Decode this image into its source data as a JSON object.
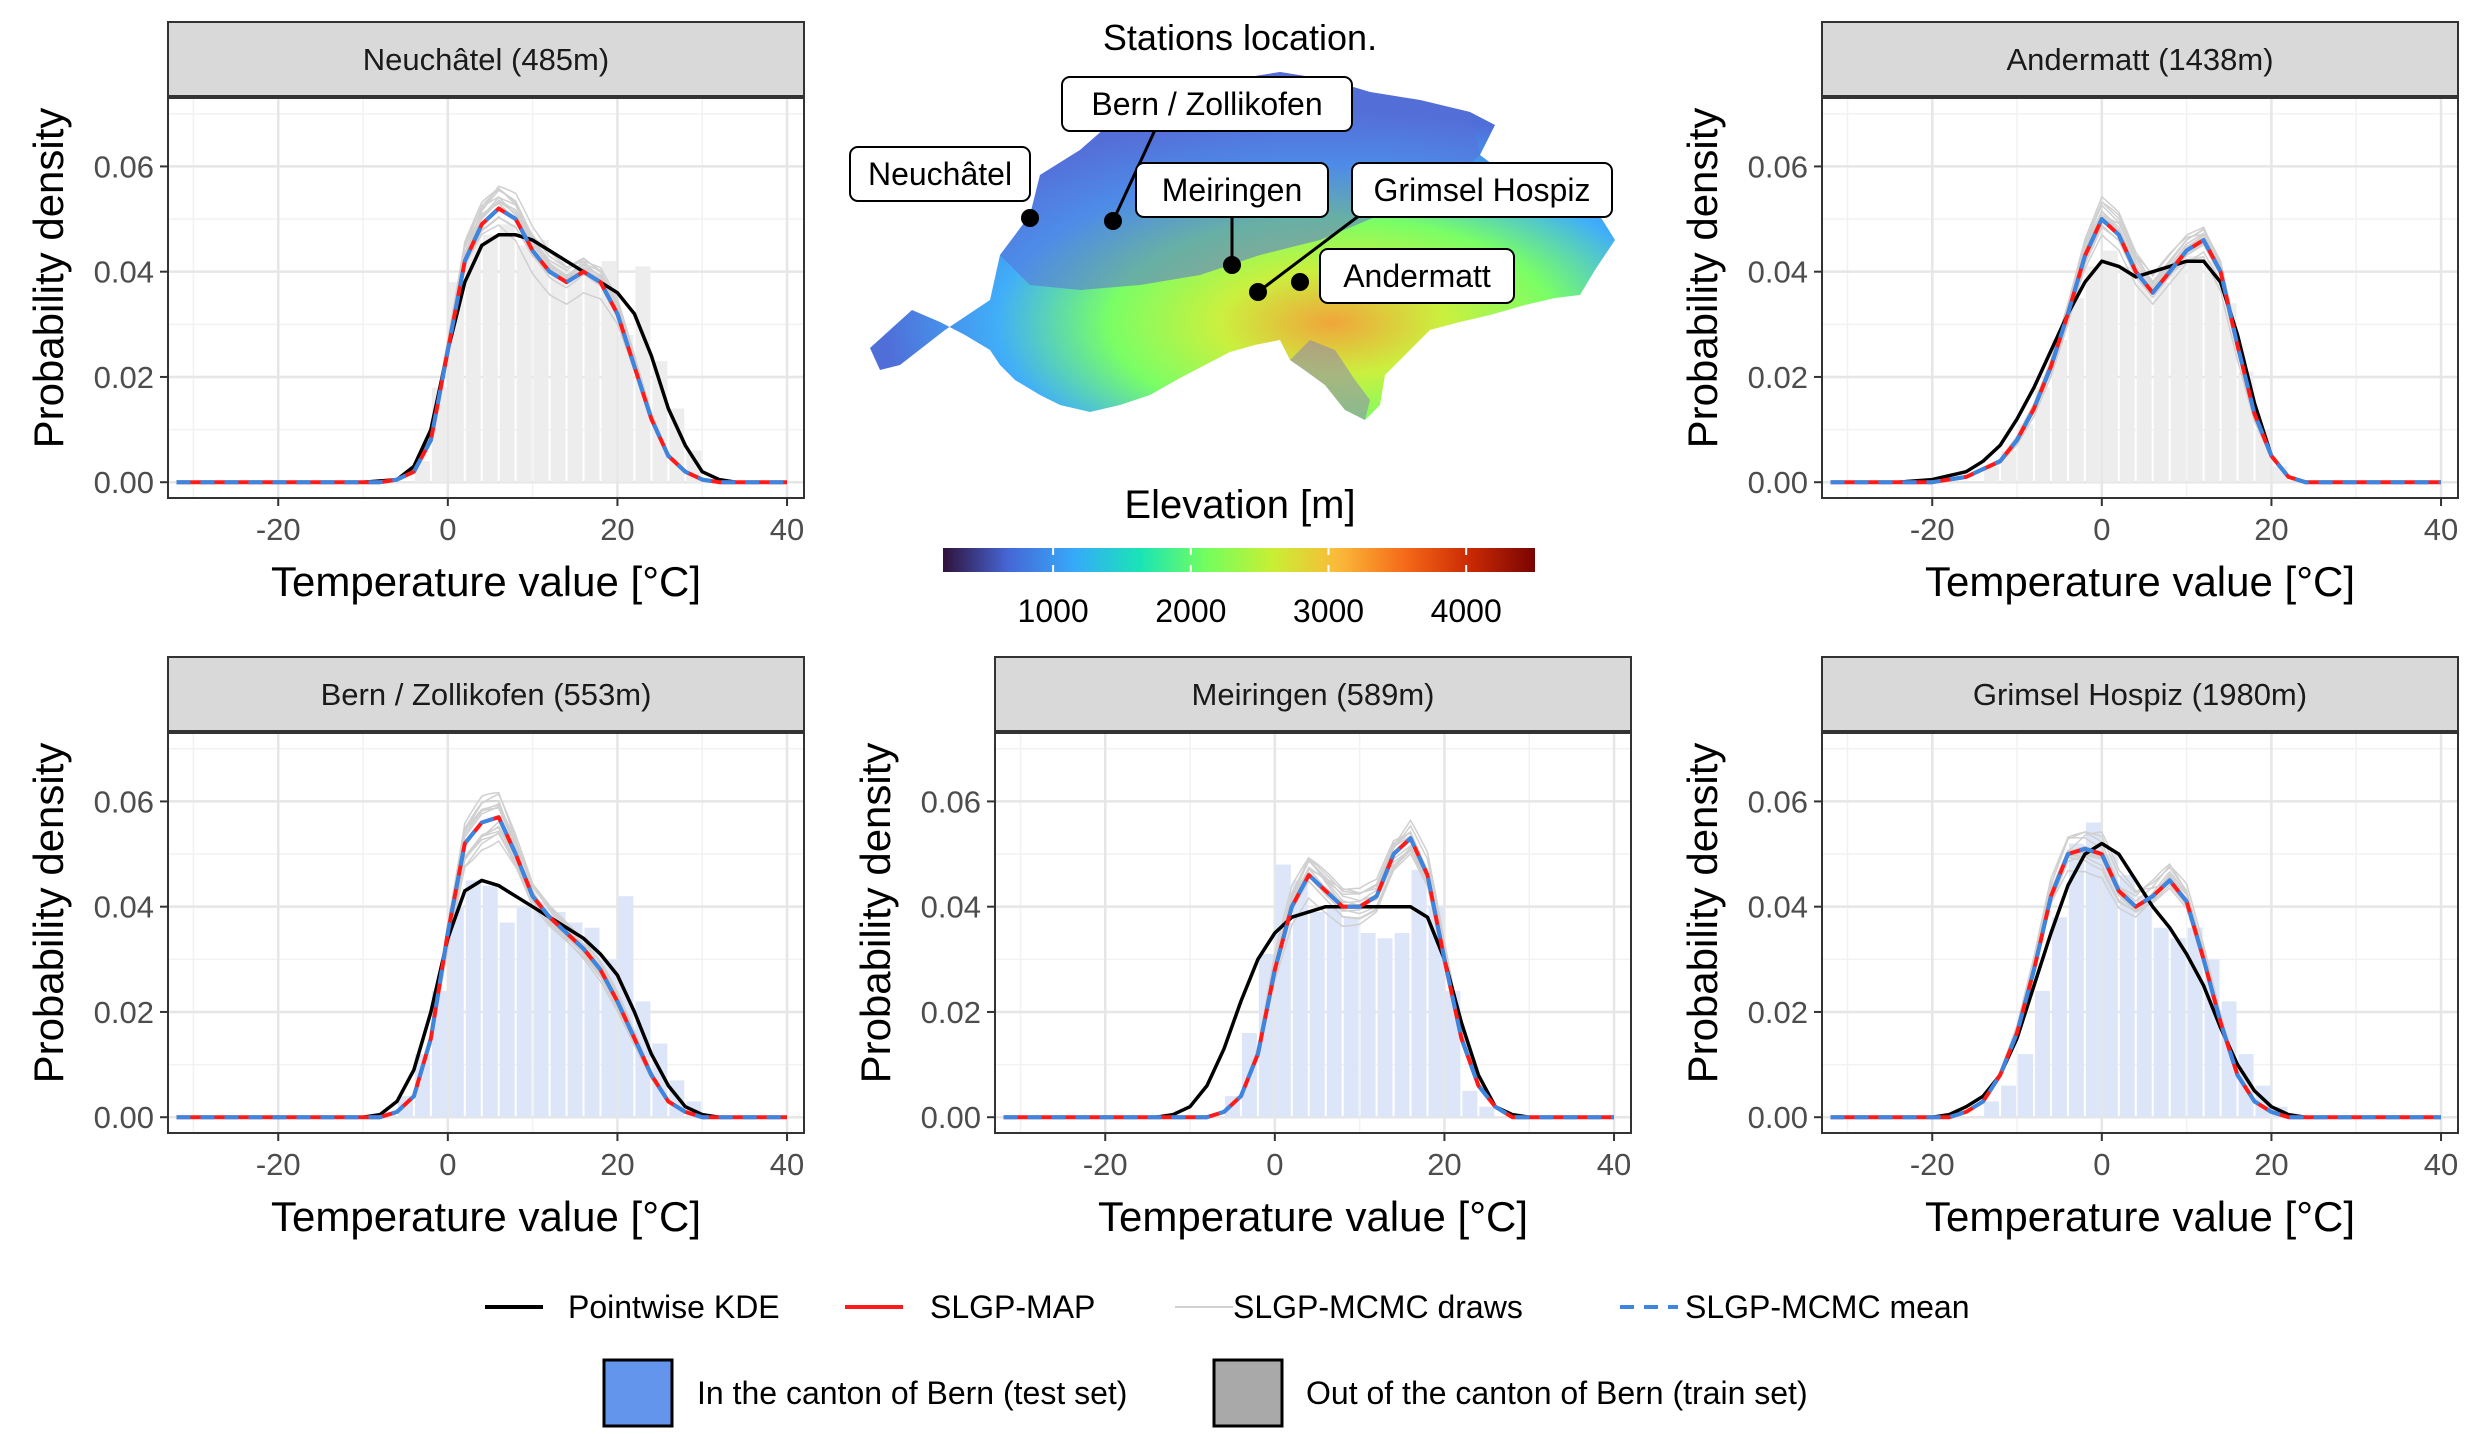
{
  "figure": {
    "map_title": "Stations location.",
    "colorbar": {
      "title": "Elevation [m]",
      "ticks": [
        "1000",
        "2000",
        "3000",
        "4000"
      ],
      "tick_values": [
        1000,
        2000,
        3000,
        4000
      ],
      "range": [
        200,
        4500
      ],
      "palette": [
        "#30123b",
        "#4667d6",
        "#36aaf9",
        "#1ae4b6",
        "#72fe5e",
        "#c8ef34",
        "#faba39",
        "#f66b19",
        "#ca2a04",
        "#7a0403"
      ]
    },
    "map_labels": [
      "Neuchâtel",
      "Bern / Zollikofen",
      "Meiringen",
      "Grimsel Hospiz",
      "Andermatt"
    ],
    "legend": {
      "lines": [
        "Pointwise KDE",
        "SLGP-MAP",
        "SLGP-MCMC draws",
        "SLGP-MCMC mean"
      ],
      "fills": [
        "In the canton of Bern (test set)",
        "Out of the canton of Bern (train set)"
      ],
      "colors": {
        "kde": "#000000",
        "map": "#ff1a1a",
        "draws": "#d0d0d0",
        "mean": "#3a86e0",
        "test_fill": "#6495ed",
        "train_fill": "#a9a9a9"
      }
    }
  },
  "chart_data": [
    {
      "type": "line",
      "strip": "Neuchâtel (485m)",
      "xlabel": "Temperature value [°C]",
      "ylabel": "Probability density",
      "xlim": [
        -33,
        42
      ],
      "ylim": [
        -0.003,
        0.073
      ],
      "xticks": [
        "-20",
        "0",
        "20",
        "40"
      ],
      "xtick_values": [
        -20,
        0,
        20,
        40
      ],
      "yticks": [
        "0.00",
        "0.02",
        "0.04",
        "0.06"
      ],
      "ytick_values": [
        0,
        0.02,
        0.04,
        0.06
      ],
      "histogram": {
        "set": "train",
        "bin_start": -4,
        "bin_width": 2,
        "values": [
          0.004,
          0.018,
          0.038,
          0.047,
          0.047,
          0.049,
          0.045,
          0.046,
          0.042,
          0.04,
          0.04,
          0.042,
          0.028,
          0.041,
          0.023,
          0.014,
          0.006
        ]
      },
      "series": [
        {
          "name": "Pointwise KDE",
          "x": [
            -32,
            -10,
            -6,
            -4,
            -2,
            0,
            2,
            4,
            6,
            8,
            10,
            12,
            14,
            16,
            18,
            20,
            22,
            24,
            26,
            28,
            30,
            32,
            34,
            40
          ],
          "y": [
            0,
            0,
            0.0005,
            0.003,
            0.01,
            0.025,
            0.038,
            0.045,
            0.047,
            0.047,
            0.046,
            0.044,
            0.042,
            0.04,
            0.038,
            0.036,
            0.032,
            0.024,
            0.014,
            0.007,
            0.002,
            0.0005,
            0,
            0
          ]
        },
        {
          "name": "SLGP-MAP",
          "x": [
            -32,
            -8,
            -6,
            -4,
            -2,
            0,
            2,
            4,
            6,
            8,
            10,
            12,
            14,
            16,
            18,
            20,
            22,
            24,
            26,
            28,
            30,
            32,
            40
          ],
          "y": [
            0,
            0,
            0.0005,
            0.002,
            0.008,
            0.025,
            0.042,
            0.049,
            0.052,
            0.05,
            0.044,
            0.04,
            0.038,
            0.04,
            0.038,
            0.032,
            0.022,
            0.012,
            0.005,
            0.002,
            0.0005,
            0,
            0
          ]
        }
      ]
    },
    {
      "type": "line",
      "strip": "Andermatt (1438m)",
      "xlabel": "Temperature value [°C]",
      "ylabel": "Probability density",
      "xlim": [
        -33,
        42
      ],
      "ylim": [
        -0.003,
        0.073
      ],
      "xticks": [
        "-20",
        "0",
        "20",
        "40"
      ],
      "xtick_values": [
        -20,
        0,
        20,
        40
      ],
      "yticks": [
        "0.00",
        "0.02",
        "0.04",
        "0.06"
      ],
      "ytick_values": [
        0,
        0.02,
        0.04,
        0.06
      ],
      "histogram": {
        "set": "train",
        "bin_start": -14,
        "bin_width": 2,
        "values": [
          0.003,
          0.006,
          0.011,
          0.018,
          0.027,
          0.035,
          0.041,
          0.044,
          0.041,
          0.039,
          0.038,
          0.042,
          0.043,
          0.042,
          0.034,
          0.021,
          0.01,
          0.003
        ]
      },
      "series": [
        {
          "name": "Pointwise KDE",
          "x": [
            -32,
            -24,
            -20,
            -16,
            -14,
            -12,
            -10,
            -8,
            -6,
            -4,
            -2,
            0,
            2,
            4,
            6,
            8,
            10,
            12,
            14,
            16,
            18,
            20,
            22,
            24,
            40
          ],
          "y": [
            0,
            0,
            0.0005,
            0.002,
            0.004,
            0.007,
            0.012,
            0.018,
            0.025,
            0.032,
            0.038,
            0.042,
            0.041,
            0.039,
            0.04,
            0.041,
            0.042,
            0.042,
            0.038,
            0.028,
            0.015,
            0.005,
            0.001,
            0,
            0
          ]
        },
        {
          "name": "SLGP-MAP",
          "x": [
            -32,
            -20,
            -16,
            -12,
            -10,
            -8,
            -6,
            -4,
            -2,
            0,
            2,
            4,
            6,
            8,
            10,
            12,
            14,
            16,
            18,
            20,
            22,
            24,
            40
          ],
          "y": [
            0,
            0,
            0.001,
            0.004,
            0.008,
            0.014,
            0.022,
            0.032,
            0.043,
            0.05,
            0.047,
            0.04,
            0.036,
            0.04,
            0.044,
            0.046,
            0.04,
            0.026,
            0.013,
            0.005,
            0.001,
            0,
            0
          ]
        }
      ]
    },
    {
      "type": "line",
      "strip": "Bern / Zollikofen (553m)",
      "xlabel": "Temperature value [°C]",
      "ylabel": "Probability density",
      "xlim": [
        -33,
        42
      ],
      "ylim": [
        -0.003,
        0.073
      ],
      "xticks": [
        "-20",
        "0",
        "20",
        "40"
      ],
      "xtick_values": [
        -20,
        0,
        20,
        40
      ],
      "yticks": [
        "0.00",
        "0.02",
        "0.04",
        "0.06"
      ],
      "ytick_values": [
        0,
        0.02,
        0.04,
        0.06
      ],
      "histogram": {
        "set": "test",
        "bin_start": -8,
        "bin_width": 2,
        "values": [
          0.001,
          0.004,
          0.012,
          0.024,
          0.04,
          0.045,
          0.044,
          0.037,
          0.04,
          0.041,
          0.039,
          0.037,
          0.036,
          0.03,
          0.042,
          0.022,
          0.014,
          0.007,
          0.003
        ]
      },
      "series": [
        {
          "name": "Pointwise KDE",
          "x": [
            -32,
            -10,
            -8,
            -6,
            -4,
            -2,
            0,
            2,
            4,
            6,
            8,
            10,
            12,
            14,
            16,
            18,
            20,
            22,
            24,
            26,
            28,
            30,
            32,
            40
          ],
          "y": [
            0,
            0,
            0.0005,
            0.003,
            0.009,
            0.02,
            0.034,
            0.043,
            0.045,
            0.044,
            0.042,
            0.04,
            0.038,
            0.036,
            0.034,
            0.031,
            0.027,
            0.02,
            0.012,
            0.006,
            0.002,
            0.0005,
            0,
            0
          ]
        },
        {
          "name": "SLGP-MAP",
          "x": [
            -32,
            -8,
            -6,
            -4,
            -2,
            0,
            2,
            4,
            6,
            8,
            10,
            12,
            14,
            16,
            18,
            20,
            22,
            24,
            26,
            28,
            30,
            32,
            40
          ],
          "y": [
            0,
            0,
            0.001,
            0.004,
            0.015,
            0.035,
            0.052,
            0.056,
            0.057,
            0.05,
            0.042,
            0.038,
            0.035,
            0.032,
            0.028,
            0.022,
            0.015,
            0.008,
            0.003,
            0.001,
            0,
            0,
            0
          ]
        }
      ]
    },
    {
      "type": "line",
      "strip": "Meiringen (589m)",
      "xlabel": "Temperature value [°C]",
      "ylabel": "Probability density",
      "xlim": [
        -33,
        42
      ],
      "ylim": [
        -0.003,
        0.073
      ],
      "xticks": [
        "-20",
        "0",
        "20",
        "40"
      ],
      "xtick_values": [
        -20,
        0,
        20,
        40
      ],
      "yticks": [
        "0.00",
        "0.02",
        "0.04",
        "0.06"
      ],
      "ytick_values": [
        0,
        0.02,
        0.04,
        0.06
      ],
      "histogram": {
        "set": "test",
        "bin_start": -6,
        "bin_width": 2,
        "values": [
          0.004,
          0.016,
          0.031,
          0.048,
          0.045,
          0.039,
          0.04,
          0.038,
          0.035,
          0.034,
          0.035,
          0.047,
          0.04,
          0.024,
          0.005,
          0.002
        ]
      },
      "series": [
        {
          "name": "Pointwise KDE",
          "x": [
            -32,
            -14,
            -12,
            -10,
            -8,
            -6,
            -4,
            -2,
            0,
            2,
            4,
            6,
            8,
            10,
            12,
            14,
            16,
            18,
            20,
            22,
            24,
            26,
            28,
            30,
            40
          ],
          "y": [
            0,
            0,
            0.0005,
            0.002,
            0.006,
            0.013,
            0.022,
            0.03,
            0.035,
            0.038,
            0.039,
            0.04,
            0.04,
            0.04,
            0.04,
            0.04,
            0.04,
            0.038,
            0.03,
            0.018,
            0.008,
            0.002,
            0.0005,
            0,
            0
          ]
        },
        {
          "name": "SLGP-MAP",
          "x": [
            -32,
            -8,
            -6,
            -4,
            -2,
            0,
            2,
            4,
            6,
            8,
            10,
            12,
            14,
            16,
            18,
            20,
            22,
            24,
            26,
            28,
            40
          ],
          "y": [
            0,
            0,
            0.001,
            0.004,
            0.012,
            0.028,
            0.04,
            0.046,
            0.043,
            0.04,
            0.04,
            0.042,
            0.05,
            0.053,
            0.046,
            0.03,
            0.015,
            0.006,
            0.002,
            0,
            0
          ]
        }
      ]
    },
    {
      "type": "line",
      "strip": "Grimsel Hospiz (1980m)",
      "xlabel": "Temperature value [°C]",
      "ylabel": "Probability density",
      "xlim": [
        -33,
        42
      ],
      "ylim": [
        -0.003,
        0.073
      ],
      "xticks": [
        "-20",
        "0",
        "20",
        "40"
      ],
      "xtick_values": [
        -20,
        0,
        20,
        40
      ],
      "yticks": [
        "0.00",
        "0.02",
        "0.04",
        "0.06"
      ],
      "ytick_values": [
        0,
        0.02,
        0.04,
        0.06
      ],
      "histogram": {
        "set": "test",
        "bin_start": -14,
        "bin_width": 2,
        "values": [
          0.003,
          0.006,
          0.012,
          0.024,
          0.038,
          0.052,
          0.056,
          0.05,
          0.046,
          0.042,
          0.036,
          0.034,
          0.036,
          0.03,
          0.022,
          0.012,
          0.006,
          0.002
        ]
      },
      "series": [
        {
          "name": "Pointwise KDE",
          "x": [
            -32,
            -20,
            -18,
            -16,
            -14,
            -12,
            -10,
            -8,
            -6,
            -4,
            -2,
            0,
            2,
            4,
            6,
            8,
            10,
            12,
            14,
            16,
            18,
            20,
            22,
            24,
            40
          ],
          "y": [
            0,
            0,
            0.0005,
            0.002,
            0.004,
            0.008,
            0.015,
            0.025,
            0.035,
            0.044,
            0.05,
            0.052,
            0.05,
            0.045,
            0.04,
            0.036,
            0.031,
            0.025,
            0.017,
            0.01,
            0.005,
            0.002,
            0.0005,
            0,
            0
          ]
        },
        {
          "name": "SLGP-MAP",
          "x": [
            -32,
            -18,
            -16,
            -14,
            -12,
            -10,
            -8,
            -6,
            -4,
            -2,
            0,
            2,
            4,
            6,
            8,
            10,
            12,
            14,
            16,
            18,
            20,
            22,
            40
          ],
          "y": [
            0,
            0,
            0.001,
            0.003,
            0.008,
            0.016,
            0.028,
            0.042,
            0.05,
            0.051,
            0.05,
            0.043,
            0.04,
            0.042,
            0.045,
            0.041,
            0.03,
            0.018,
            0.008,
            0.003,
            0.001,
            0,
            0
          ]
        }
      ]
    }
  ]
}
